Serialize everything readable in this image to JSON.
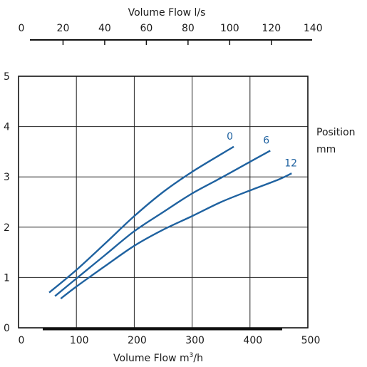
{
  "chart_data": {
    "type": "line",
    "title": "",
    "top_axis": {
      "label": "Volume Flow l/s",
      "ticks": [
        0,
        20,
        40,
        60,
        80,
        100,
        120,
        140
      ]
    },
    "bottom_axis": {
      "label_main": "Volume Flow m",
      "label_sup": "3",
      "label_tail": "/h",
      "ticks": [
        0,
        100,
        200,
        300,
        400,
        500
      ],
      "range": [
        0,
        500
      ]
    },
    "y_axis": {
      "label": "",
      "ticks": [
        0,
        1,
        2,
        3,
        4,
        5
      ],
      "range": [
        0,
        5
      ]
    },
    "legend_title": [
      "Position",
      "mm"
    ],
    "grid": true,
    "curve_color": "#1f62a0",
    "series": [
      {
        "name": "0",
        "x": [
          53,
          100,
          150,
          200,
          250,
          300,
          350,
          372
        ],
        "y": [
          0.7,
          1.15,
          1.68,
          2.22,
          2.7,
          3.1,
          3.45,
          3.6
        ]
      },
      {
        "name": "6",
        "x": [
          63,
          100,
          150,
          200,
          250,
          300,
          350,
          400,
          435
        ],
        "y": [
          0.63,
          0.98,
          1.45,
          1.92,
          2.3,
          2.67,
          2.98,
          3.3,
          3.52
        ]
      },
      {
        "name": "12",
        "x": [
          73,
          100,
          150,
          200,
          250,
          300,
          350,
          400,
          450,
          472
        ],
        "y": [
          0.58,
          0.82,
          1.23,
          1.63,
          1.95,
          2.22,
          2.5,
          2.73,
          2.95,
          3.07
        ]
      }
    ]
  }
}
